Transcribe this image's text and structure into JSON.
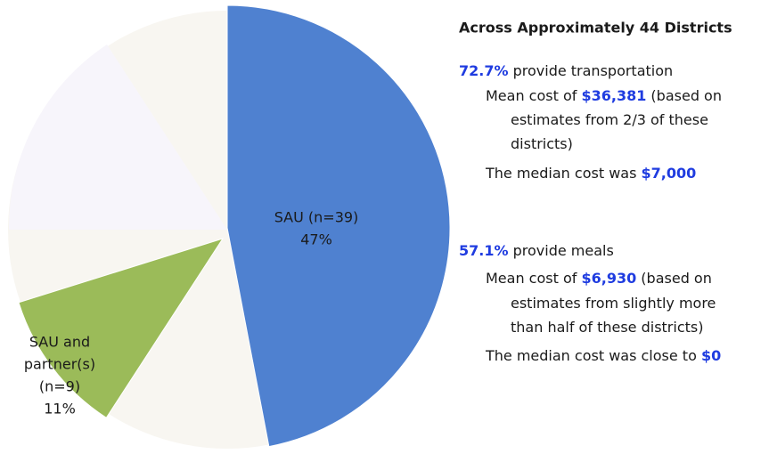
{
  "chart_data": {
    "type": "pie",
    "labels": [
      [
        "SAU (n=39)"
      ],
      [
        "SAU and",
        "partner(s)",
        "(n=9)"
      ]
    ],
    "values": [
      47,
      11
    ],
    "value_labels": [
      "47%",
      "11%"
    ],
    "colors": [
      "#4f81d0",
      "#9bbb59"
    ]
  },
  "side_text": {
    "heading": "Across Approximately 44 Districts",
    "lines": [
      {
        "level": 0,
        "parts": [
          {
            "text": "72.7%",
            "highlight": true
          },
          {
            "text": " provide transportation"
          }
        ]
      },
      {
        "level": 1,
        "parts": [
          {
            "text": "Mean cost of "
          },
          {
            "text": "$36,381",
            "highlight": true
          },
          {
            "text": " (based on"
          }
        ]
      },
      {
        "level": 2,
        "parts": [
          {
            "text": "estimates from 2/3 of these"
          }
        ]
      },
      {
        "level": 2,
        "parts": [
          {
            "text": "districts)"
          }
        ]
      },
      {
        "level": 1,
        "parts": [
          {
            "text": "The median cost was "
          },
          {
            "text": "$7,000",
            "highlight": true
          }
        ]
      },
      {
        "level": 0,
        "parts": [
          {
            "text": "57.1%",
            "highlight": true
          },
          {
            "text": " provide meals"
          }
        ]
      },
      {
        "level": 1,
        "parts": [
          {
            "text": "Mean cost of "
          },
          {
            "text": "$6,930",
            "highlight": true
          },
          {
            "text": " (based on"
          }
        ]
      },
      {
        "level": 2,
        "parts": [
          {
            "text": "estimates from slightly more"
          }
        ]
      },
      {
        "level": 2,
        "parts": [
          {
            "text": "than half of these districts)"
          }
        ]
      },
      {
        "level": 1,
        "parts": [
          {
            "text": "The median cost was close to "
          },
          {
            "text": "$0",
            "highlight": true
          }
        ]
      }
    ]
  }
}
